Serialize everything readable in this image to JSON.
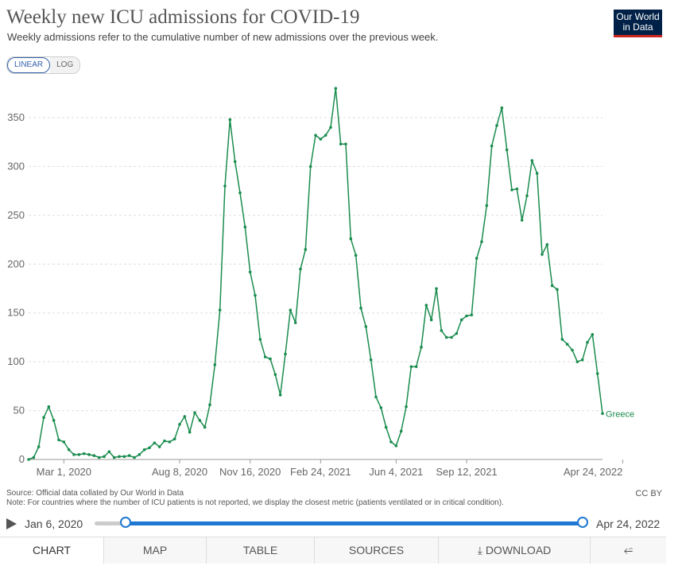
{
  "header": {
    "title": "Weekly new ICU admissions for COVID-19",
    "subtitle": "Weekly admissions refer to the cumulative number of new admissions over the previous week.",
    "logo_line1": "Our World",
    "logo_line2": "in Data"
  },
  "scale_toggle": {
    "linear": "LINEAR",
    "log": "LOG",
    "active": "linear"
  },
  "footer": {
    "source": "Source: Official data collated by Our World in Data",
    "note": "Note: For countries where the number of ICU patients is not reported, we display the closest metric (patients ventilated or in critical condition).",
    "license": "CC BY"
  },
  "timeline": {
    "start_label": "Jan 6, 2020",
    "end_label": "Apr 24, 2022"
  },
  "tabs": {
    "chart": "CHART",
    "map": "MAP",
    "table": "TABLE",
    "sources": "SOURCES",
    "download": "DOWNLOAD",
    "active": "chart"
  },
  "colors": {
    "series": "#1a8c4e",
    "accent": "#1f78d1",
    "logo_bg": "#002147",
    "logo_bar": "#ce261e"
  },
  "chart_data": {
    "type": "line",
    "title": "Weekly new ICU admissions for COVID-19",
    "ylim": [
      0,
      380
    ],
    "y_ticks": [
      0,
      50,
      100,
      150,
      200,
      250,
      300,
      350
    ],
    "x_ticks": [
      {
        "label": "Mar 1, 2020",
        "week": 7
      },
      {
        "label": "Aug 8, 2020",
        "week": 30
      },
      {
        "label": "Nov 16, 2020",
        "week": 44
      },
      {
        "label": "Feb 24, 2021",
        "week": 58
      },
      {
        "label": "Jun 4, 2021",
        "week": 73
      },
      {
        "label": "Sep 12, 2021",
        "week": 87
      },
      {
        "label": "Apr 24, 2022",
        "week": 118
      }
    ],
    "grid": "horizontal",
    "series": [
      {
        "name": "Greece",
        "start": "Jan 6, 2020",
        "interval": "weekly",
        "values": [
          0,
          2,
          13,
          43,
          54,
          40,
          20,
          18,
          10,
          5,
          5,
          6,
          5,
          4,
          2,
          3,
          8,
          2,
          3,
          3,
          4,
          2,
          5,
          10,
          12,
          17,
          13,
          19,
          18,
          21,
          36,
          44,
          28,
          48,
          40,
          33,
          56,
          97,
          153,
          280,
          348,
          305,
          273,
          238,
          192,
          168,
          123,
          105,
          103,
          87,
          66,
          108,
          153,
          140,
          195,
          215,
          300,
          332,
          328,
          332,
          340,
          380,
          323,
          323,
          226,
          209,
          155,
          136,
          102,
          64,
          53,
          33,
          18,
          14,
          29,
          54,
          95,
          95,
          115,
          158,
          143,
          175,
          132,
          125,
          125,
          129,
          143,
          147,
          148,
          206,
          223,
          260,
          321,
          342,
          360,
          317,
          276,
          277,
          245,
          270,
          306,
          293,
          210,
          220,
          178,
          174,
          123,
          118,
          112,
          100,
          102,
          120,
          128,
          88,
          47
        ]
      }
    ]
  }
}
